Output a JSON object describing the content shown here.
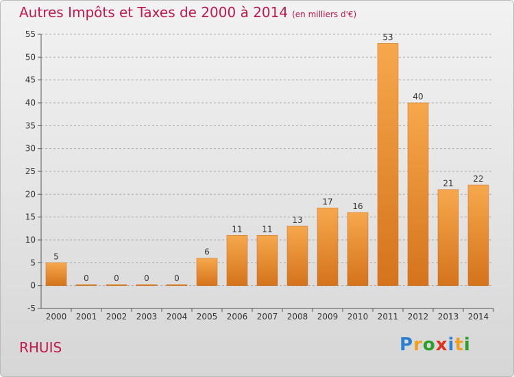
{
  "header": {
    "title": "Autres Impôts et Taxes de 2000 à 2014",
    "unit": "(en milliers d'€)"
  },
  "footer": {
    "town": "RHUIS",
    "logo_text": "Proxiti"
  },
  "colors": {
    "title": "#c0184c",
    "bar_top": "#f7a84c",
    "bar_bottom": "#d4731c",
    "grid": "#a8a8a8"
  },
  "chart_data": {
    "type": "bar",
    "title": "Autres Impôts et Taxes de 2000 à 2014",
    "subtitle": "(en milliers d'€)",
    "categories": [
      "2000",
      "2001",
      "2002",
      "2003",
      "2004",
      "2005",
      "2006",
      "2007",
      "2008",
      "2009",
      "2010",
      "2011",
      "2012",
      "2013",
      "2014"
    ],
    "values": [
      5,
      0,
      0,
      0,
      0,
      6,
      11,
      11,
      13,
      17,
      16,
      53,
      40,
      21,
      22
    ],
    "ylim": [
      -5,
      55
    ],
    "yticks": [
      -5,
      0,
      5,
      10,
      15,
      20,
      25,
      30,
      35,
      40,
      45,
      50,
      55
    ],
    "grid": "horizontal dashed",
    "legend": "none"
  }
}
